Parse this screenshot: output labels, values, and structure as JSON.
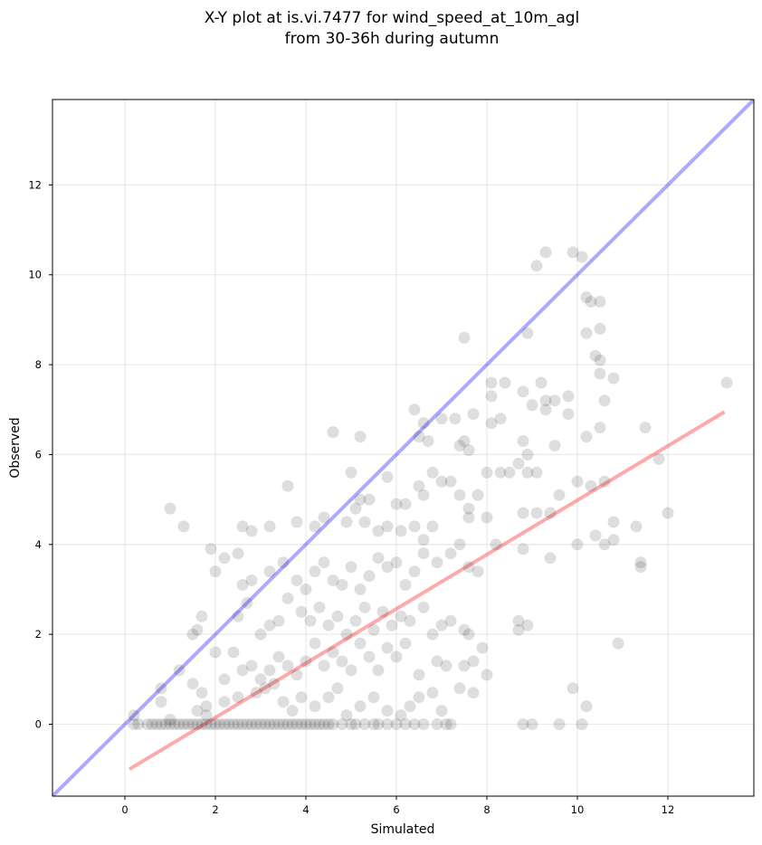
{
  "chart_data": {
    "type": "scatter",
    "title_line1": "X-Y plot at is.vi.7477 for wind_speed_at_10m_agl",
    "title_line2": "from 30-36h during autumn",
    "xlabel": "Simulated",
    "ylabel": "Observed",
    "xlim": [
      -1.6,
      13.9
    ],
    "ylim": [
      -1.6,
      13.9
    ],
    "xticks": [
      0,
      2,
      4,
      6,
      8,
      10,
      12
    ],
    "yticks": [
      0,
      2,
      4,
      6,
      8,
      10,
      12
    ],
    "grid": true,
    "colors": {
      "points": "#000000",
      "identity_line": "#0000ff",
      "fit_line": "#ff0000",
      "grid": "#dddddd"
    },
    "identity_line": {
      "x": [
        -1.6,
        13.9
      ],
      "y": [
        -1.6,
        13.9
      ]
    },
    "fit_line": {
      "x": [
        0.1,
        13.25
      ],
      "y": [
        -1.0,
        6.95
      ]
    },
    "points": [
      [
        0.2,
        0
      ],
      [
        0.3,
        0
      ],
      [
        0.5,
        0
      ],
      [
        0.6,
        0
      ],
      [
        0.7,
        0
      ],
      [
        0.8,
        0
      ],
      [
        0.9,
        0
      ],
      [
        1.0,
        0
      ],
      [
        1.1,
        0
      ],
      [
        1.2,
        0
      ],
      [
        1.3,
        0
      ],
      [
        1.4,
        0
      ],
      [
        1.5,
        0
      ],
      [
        1.6,
        0
      ],
      [
        1.7,
        0
      ],
      [
        1.8,
        0
      ],
      [
        1.9,
        0
      ],
      [
        2.0,
        0
      ],
      [
        2.1,
        0
      ],
      [
        2.2,
        0
      ],
      [
        2.3,
        0
      ],
      [
        2.4,
        0
      ],
      [
        2.5,
        0
      ],
      [
        2.6,
        0
      ],
      [
        2.7,
        0
      ],
      [
        2.8,
        0
      ],
      [
        2.9,
        0
      ],
      [
        3.0,
        0
      ],
      [
        3.1,
        0
      ],
      [
        3.2,
        0
      ],
      [
        3.3,
        0
      ],
      [
        3.4,
        0
      ],
      [
        3.5,
        0
      ],
      [
        3.6,
        0
      ],
      [
        3.7,
        0
      ],
      [
        3.8,
        0
      ],
      [
        3.9,
        0
      ],
      [
        4.0,
        0
      ],
      [
        4.1,
        0
      ],
      [
        4.2,
        0
      ],
      [
        4.3,
        0
      ],
      [
        4.4,
        0
      ],
      [
        4.5,
        0
      ],
      [
        4.6,
        0
      ],
      [
        4.8,
        0
      ],
      [
        5.0,
        0
      ],
      [
        5.1,
        0
      ],
      [
        5.3,
        0
      ],
      [
        5.5,
        0
      ],
      [
        5.6,
        0
      ],
      [
        5.8,
        0
      ],
      [
        6.0,
        0
      ],
      [
        6.2,
        0
      ],
      [
        6.4,
        0
      ],
      [
        6.6,
        0
      ],
      [
        6.9,
        0
      ],
      [
        7.1,
        0
      ],
      [
        7.2,
        0
      ],
      [
        8.8,
        0
      ],
      [
        9.0,
        0
      ],
      [
        9.6,
        0
      ],
      [
        10.1,
        0
      ],
      [
        0.2,
        0.2
      ],
      [
        0.8,
        0.5
      ],
      [
        0.8,
        0.8
      ],
      [
        1.0,
        0.1
      ],
      [
        1.6,
        0.3
      ],
      [
        1.8,
        0.2
      ],
      [
        1.8,
        0.4
      ],
      [
        2.2,
        0.5
      ],
      [
        2.5,
        0.6
      ],
      [
        2.9,
        0.7
      ],
      [
        3.1,
        0.8
      ],
      [
        3.3,
        0.9
      ],
      [
        3.5,
        0.5
      ],
      [
        3.7,
        0.3
      ],
      [
        3.9,
        0.6
      ],
      [
        4.2,
        0.4
      ],
      [
        4.5,
        0.6
      ],
      [
        4.7,
        0.8
      ],
      [
        4.9,
        0.2
      ],
      [
        5.2,
        0.4
      ],
      [
        5.5,
        0.6
      ],
      [
        5.8,
        0.3
      ],
      [
        6.1,
        0.2
      ],
      [
        6.3,
        0.4
      ],
      [
        6.5,
        0.6
      ],
      [
        6.8,
        0.7
      ],
      [
        7.0,
        0.3
      ],
      [
        7.4,
        0.8
      ],
      [
        7.7,
        0.7
      ],
      [
        9.9,
        0.8
      ],
      [
        10.2,
        0.4
      ],
      [
        1.2,
        1.2
      ],
      [
        1.5,
        0.9
      ],
      [
        1.7,
        0.7
      ],
      [
        2.0,
        1.6
      ],
      [
        2.2,
        1.0
      ],
      [
        2.4,
        1.6
      ],
      [
        2.6,
        1.2
      ],
      [
        2.8,
        1.3
      ],
      [
        3.0,
        1.0
      ],
      [
        3.2,
        1.2
      ],
      [
        3.4,
        1.5
      ],
      [
        3.6,
        1.3
      ],
      [
        3.8,
        1.1
      ],
      [
        4.0,
        1.4
      ],
      [
        4.2,
        1.8
      ],
      [
        4.4,
        1.3
      ],
      [
        4.6,
        1.6
      ],
      [
        4.8,
        1.4
      ],
      [
        5.0,
        1.2
      ],
      [
        5.2,
        1.8
      ],
      [
        5.4,
        1.5
      ],
      [
        5.6,
        1.2
      ],
      [
        5.8,
        1.7
      ],
      [
        6.0,
        1.5
      ],
      [
        6.2,
        1.8
      ],
      [
        6.5,
        1.1
      ],
      [
        6.9,
        1.4
      ],
      [
        7.1,
        1.3
      ],
      [
        7.5,
        1.3
      ],
      [
        7.7,
        1.4
      ],
      [
        7.9,
        1.7
      ],
      [
        8.0,
        1.1
      ],
      [
        1.5,
        2.0
      ],
      [
        1.6,
        2.1
      ],
      [
        1.7,
        2.4
      ],
      [
        2.5,
        2.4
      ],
      [
        2.7,
        2.7
      ],
      [
        3.0,
        2.0
      ],
      [
        3.2,
        2.2
      ],
      [
        3.4,
        2.3
      ],
      [
        3.6,
        2.8
      ],
      [
        3.9,
        2.5
      ],
      [
        4.1,
        2.3
      ],
      [
        4.3,
        2.6
      ],
      [
        4.5,
        2.2
      ],
      [
        4.7,
        2.4
      ],
      [
        4.9,
        2.0
      ],
      [
        5.1,
        2.3
      ],
      [
        5.3,
        2.6
      ],
      [
        5.5,
        2.1
      ],
      [
        5.7,
        2.5
      ],
      [
        5.9,
        2.2
      ],
      [
        6.1,
        2.4
      ],
      [
        6.3,
        2.3
      ],
      [
        6.6,
        2.6
      ],
      [
        6.8,
        2.0
      ],
      [
        7.0,
        2.2
      ],
      [
        7.2,
        2.3
      ],
      [
        7.5,
        2.1
      ],
      [
        7.6,
        2.0
      ],
      [
        8.7,
        2.1
      ],
      [
        8.9,
        2.2
      ],
      [
        8.7,
        2.3
      ],
      [
        10.9,
        1.8
      ],
      [
        1.9,
        3.9
      ],
      [
        2.0,
        3.4
      ],
      [
        2.2,
        3.7
      ],
      [
        2.5,
        3.8
      ],
      [
        2.6,
        3.1
      ],
      [
        2.8,
        3.2
      ],
      [
        3.2,
        3.4
      ],
      [
        3.5,
        3.6
      ],
      [
        3.8,
        3.2
      ],
      [
        4.0,
        3.0
      ],
      [
        4.2,
        3.4
      ],
      [
        4.4,
        3.6
      ],
      [
        4.6,
        3.2
      ],
      [
        4.8,
        3.1
      ],
      [
        5.0,
        3.5
      ],
      [
        5.2,
        3.0
      ],
      [
        5.4,
        3.3
      ],
      [
        5.6,
        3.7
      ],
      [
        5.8,
        3.5
      ],
      [
        6.0,
        3.6
      ],
      [
        6.2,
        3.1
      ],
      [
        6.4,
        3.4
      ],
      [
        6.6,
        3.8
      ],
      [
        6.9,
        3.6
      ],
      [
        7.2,
        3.8
      ],
      [
        7.6,
        3.5
      ],
      [
        7.8,
        3.4
      ],
      [
        8.2,
        4.0
      ],
      [
        8.8,
        3.9
      ],
      [
        9.4,
        3.7
      ],
      [
        11.4,
        3.6
      ],
      [
        11.4,
        3.5
      ],
      [
        1.0,
        4.8
      ],
      [
        1.3,
        4.4
      ],
      [
        2.6,
        4.4
      ],
      [
        2.8,
        4.3
      ],
      [
        3.2,
        4.4
      ],
      [
        3.8,
        4.5
      ],
      [
        4.2,
        4.4
      ],
      [
        4.4,
        4.6
      ],
      [
        4.9,
        4.5
      ],
      [
        5.1,
        4.8
      ],
      [
        5.3,
        4.5
      ],
      [
        5.6,
        4.3
      ],
      [
        5.8,
        4.4
      ],
      [
        6.1,
        4.3
      ],
      [
        6.4,
        4.4
      ],
      [
        6.6,
        4.1
      ],
      [
        6.8,
        4.4
      ],
      [
        7.4,
        4.0
      ],
      [
        7.6,
        4.6
      ],
      [
        8.0,
        4.6
      ],
      [
        8.8,
        4.7
      ],
      [
        9.1,
        4.7
      ],
      [
        9.4,
        4.7
      ],
      [
        10.0,
        4.0
      ],
      [
        10.4,
        4.2
      ],
      [
        10.6,
        4.0
      ],
      [
        10.8,
        4.1
      ],
      [
        10.8,
        4.5
      ],
      [
        11.3,
        4.4
      ],
      [
        12.0,
        4.7
      ],
      [
        3.6,
        5.3
      ],
      [
        5.0,
        5.6
      ],
      [
        5.2,
        5.0
      ],
      [
        5.4,
        5.0
      ],
      [
        5.8,
        5.5
      ],
      [
        6.0,
        4.9
      ],
      [
        6.2,
        4.9
      ],
      [
        6.5,
        5.3
      ],
      [
        6.6,
        5.1
      ],
      [
        6.8,
        5.6
      ],
      [
        7.0,
        5.4
      ],
      [
        7.2,
        5.4
      ],
      [
        7.4,
        5.1
      ],
      [
        7.6,
        4.8
      ],
      [
        7.8,
        5.1
      ],
      [
        8.0,
        5.6
      ],
      [
        8.3,
        5.6
      ],
      [
        8.5,
        5.6
      ],
      [
        8.7,
        5.8
      ],
      [
        8.9,
        5.6
      ],
      [
        9.1,
        5.6
      ],
      [
        9.6,
        5.1
      ],
      [
        10.0,
        5.4
      ],
      [
        10.3,
        5.3
      ],
      [
        10.6,
        5.4
      ],
      [
        11.8,
        5.9
      ],
      [
        4.6,
        6.5
      ],
      [
        5.2,
        6.4
      ],
      [
        6.4,
        7.0
      ],
      [
        6.5,
        6.4
      ],
      [
        6.6,
        6.7
      ],
      [
        6.7,
        6.3
      ],
      [
        7.0,
        6.8
      ],
      [
        7.3,
        6.8
      ],
      [
        7.4,
        6.2
      ],
      [
        7.5,
        6.3
      ],
      [
        7.6,
        6.1
      ],
      [
        7.7,
        6.9
      ],
      [
        8.1,
        6.7
      ],
      [
        8.3,
        6.8
      ],
      [
        8.8,
        6.3
      ],
      [
        8.9,
        6.0
      ],
      [
        9.3,
        7.0
      ],
      [
        9.5,
        6.2
      ],
      [
        10.2,
        6.4
      ],
      [
        10.5,
        6.6
      ],
      [
        10.6,
        7.2
      ],
      [
        11.5,
        6.6
      ],
      [
        7.5,
        8.6
      ],
      [
        8.1,
        7.3
      ],
      [
        8.1,
        7.6
      ],
      [
        8.4,
        7.6
      ],
      [
        8.8,
        7.4
      ],
      [
        8.9,
        8.7
      ],
      [
        9.0,
        7.1
      ],
      [
        9.2,
        7.6
      ],
      [
        9.3,
        7.2
      ],
      [
        9.5,
        7.2
      ],
      [
        9.8,
        7.3
      ],
      [
        9.8,
        6.9
      ],
      [
        10.4,
        8.2
      ],
      [
        10.5,
        8.8
      ],
      [
        10.5,
        7.8
      ],
      [
        10.8,
        7.7
      ],
      [
        13.3,
        7.6
      ],
      [
        10.2,
        8.7
      ],
      [
        9.1,
        10.2
      ],
      [
        9.3,
        10.5
      ],
      [
        9.9,
        10.5
      ],
      [
        10.1,
        10.4
      ],
      [
        10.2,
        9.5
      ],
      [
        10.3,
        9.4
      ],
      [
        10.5,
        9.4
      ],
      [
        10.5,
        8.1
      ]
    ]
  }
}
